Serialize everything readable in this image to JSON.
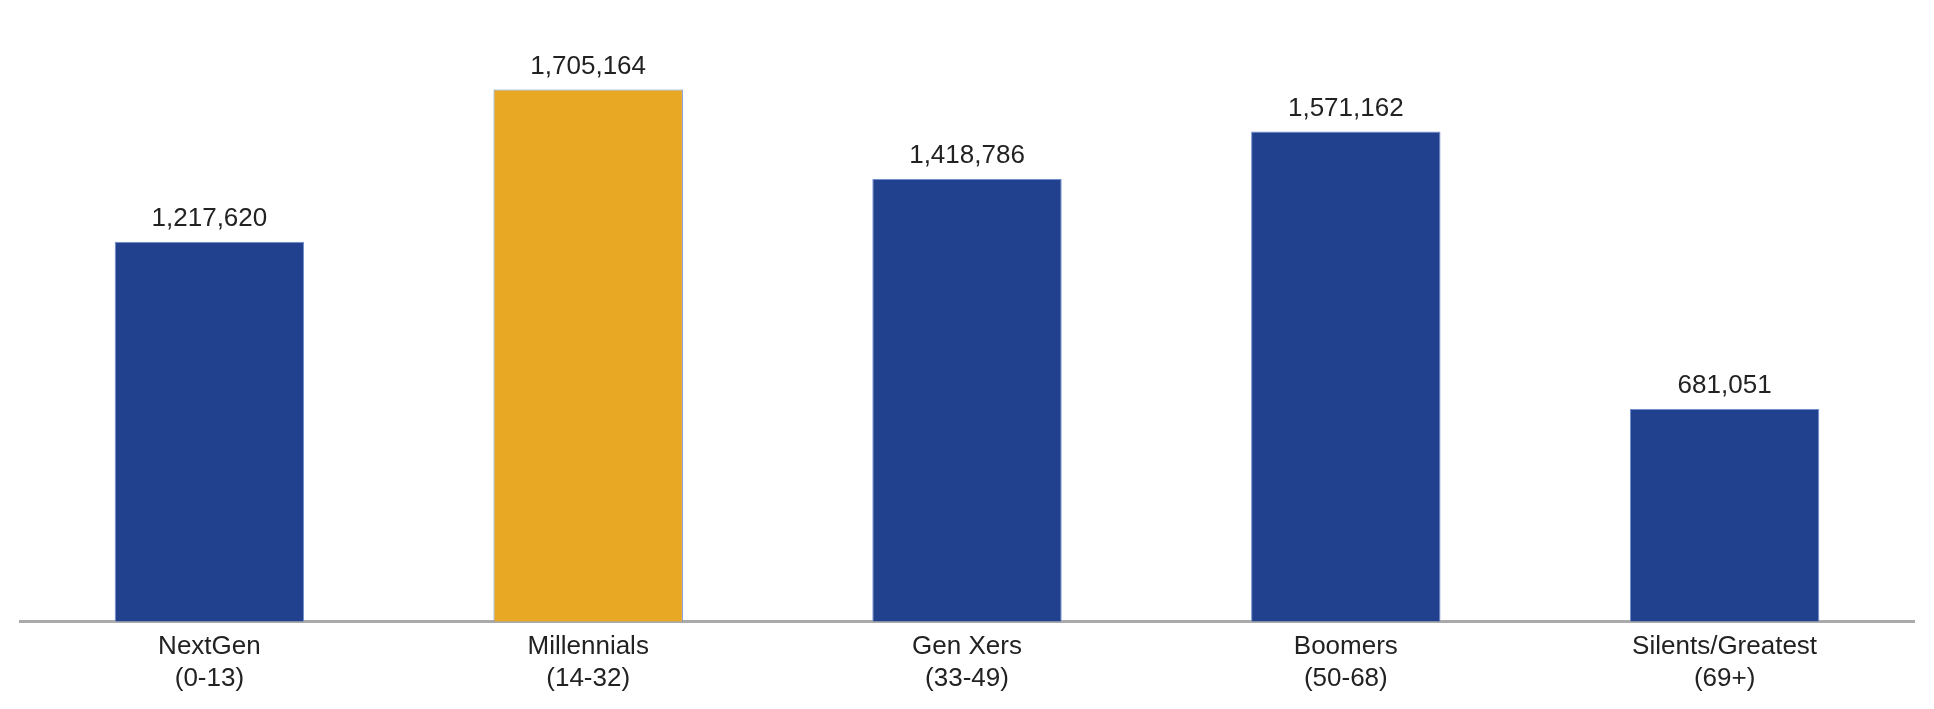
{
  "chart_data": {
    "type": "bar",
    "categories": [
      "NextGen\n(0-13)",
      "Millennials\n(14-32)",
      "Gen Xers\n(33-49)",
      "Boomers\n(50-68)",
      "Silents/Greatest\n(69+)"
    ],
    "values": [
      1217620,
      1705164,
      1418786,
      1571162,
      681051
    ],
    "colors": [
      "#21418f",
      "#e8a823",
      "#21418f",
      "#21418f",
      "#21418f"
    ],
    "value_labels": [
      "1,217,620",
      "1,705,164",
      "1,418,786",
      "1,571,162",
      "681,051"
    ],
    "grid": false,
    "legend": false
  }
}
